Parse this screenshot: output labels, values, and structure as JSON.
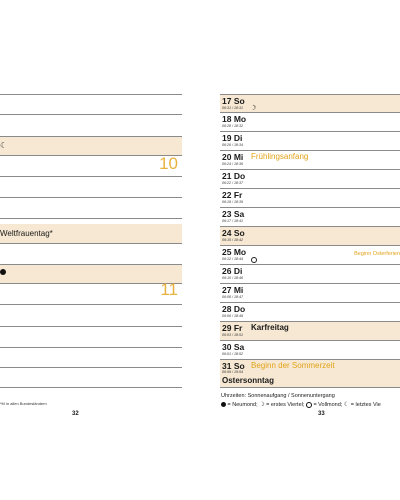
{
  "left_page": {
    "holiday_text": "Weltfrauentag*",
    "week_numbers": [
      "10",
      "11"
    ],
    "footnote": "*M in allen Bundesländern",
    "page_number": "32"
  },
  "right_page": {
    "days": [
      {
        "day": "17 So",
        "sun": "06:31 / 18:31"
      },
      {
        "day": "18 Mo",
        "sun": "06:28 / 18:32"
      },
      {
        "day": "19 Di",
        "sun": "06:26 / 18:34"
      },
      {
        "day": "20 Mi",
        "sun": "06:24 / 18:36",
        "note": "Frühlingsanfang"
      },
      {
        "day": "21 Do",
        "sun": "06:22 / 18:37"
      },
      {
        "day": "22 Fr",
        "sun": "06:19 / 18:39"
      },
      {
        "day": "23 Sa",
        "sun": "06:17 / 18:41"
      },
      {
        "day": "24 So",
        "sun": "06:15 / 18:42"
      },
      {
        "day": "25 Mo",
        "sun": "06:12 / 18:44",
        "right_note": "Beginn Osterferien"
      },
      {
        "day": "26 Di",
        "sun": "06:10 / 18:46"
      },
      {
        "day": "27 Mi",
        "sun": "06:08 / 18:47"
      },
      {
        "day": "28 Do",
        "sun": "06:06 / 18:49"
      },
      {
        "day": "29 Fr",
        "sun": "06:03 / 18:51",
        "note": "Karfreitag"
      },
      {
        "day": "30 Sa",
        "sun": "06:01 / 18:52"
      },
      {
        "day": "31 So",
        "sun": "06:59 / 19:54",
        "note": "Beginn der Sommerzeit",
        "note2": "Ostersonntag"
      }
    ],
    "legend_line1": "Uhrzeiten: Sonnenaufgang / Sonnenuntergang",
    "legend_new_moon": "= Neumond;",
    "legend_first_quarter": "= erstes Viertel;",
    "legend_full_moon": "= Vollmond;",
    "legend_last_quarter": "= letztes Vie",
    "page_number": "33"
  },
  "colors": {
    "accent": "#e2a31a",
    "week_number": "#e7b23e",
    "tint": "#f6e8d2"
  }
}
